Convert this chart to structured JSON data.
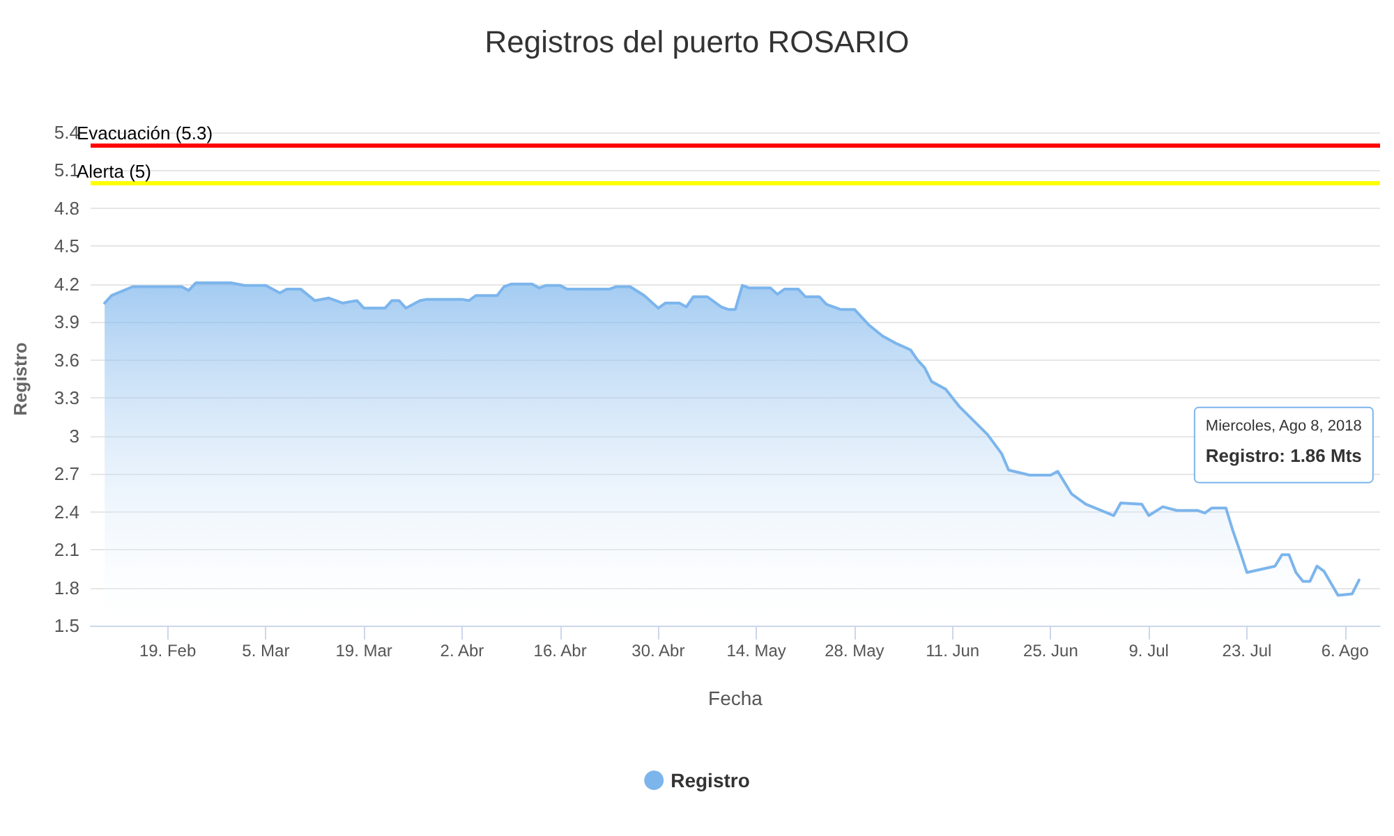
{
  "chart_data": {
    "type": "area",
    "title": "Registros del puerto ROSARIO",
    "xlabel": "Fecha",
    "ylabel": "Registro",
    "x": [
      "2018-02-10",
      "2018-02-11",
      "2018-02-14",
      "2018-02-21",
      "2018-02-22",
      "2018-02-23",
      "2018-02-28",
      "2018-03-02",
      "2018-03-05",
      "2018-03-07",
      "2018-03-08",
      "2018-03-10",
      "2018-03-12",
      "2018-03-14",
      "2018-03-16",
      "2018-03-18",
      "2018-03-19",
      "2018-03-22",
      "2018-03-23",
      "2018-03-24",
      "2018-03-25",
      "2018-03-27",
      "2018-03-28",
      "2018-04-02",
      "2018-04-03",
      "2018-04-04",
      "2018-04-07",
      "2018-04-08",
      "2018-04-09",
      "2018-04-12",
      "2018-04-13",
      "2018-04-14",
      "2018-04-16",
      "2018-04-17",
      "2018-04-23",
      "2018-04-24",
      "2018-04-26",
      "2018-04-28",
      "2018-04-30",
      "2018-05-01",
      "2018-05-03",
      "2018-05-04",
      "2018-05-05",
      "2018-05-07",
      "2018-05-09",
      "2018-05-10",
      "2018-05-11",
      "2018-05-12",
      "2018-05-13",
      "2018-05-16",
      "2018-05-17",
      "2018-05-18",
      "2018-05-20",
      "2018-05-21",
      "2018-05-23",
      "2018-05-24",
      "2018-05-26",
      "2018-05-28",
      "2018-05-30",
      "2018-06-01",
      "2018-06-03",
      "2018-06-05",
      "2018-06-06",
      "2018-06-07",
      "2018-06-08",
      "2018-06-10",
      "2018-06-12",
      "2018-06-16",
      "2018-06-18",
      "2018-06-19",
      "2018-06-22",
      "2018-06-25",
      "2018-06-26",
      "2018-06-28",
      "2018-06-30",
      "2018-07-04",
      "2018-07-05",
      "2018-07-08",
      "2018-07-09",
      "2018-07-11",
      "2018-07-13",
      "2018-07-16",
      "2018-07-17",
      "2018-07-18",
      "2018-07-20",
      "2018-07-21",
      "2018-07-22",
      "2018-07-23",
      "2018-07-27",
      "2018-07-28",
      "2018-07-29",
      "2018-07-30",
      "2018-07-31",
      "2018-08-01",
      "2018-08-02",
      "2018-08-03",
      "2018-08-05",
      "2018-08-07",
      "2018-08-08"
    ],
    "series": [
      {
        "name": "Registro",
        "color": "#7cb5ec",
        "values": [
          4.05,
          4.11,
          4.18,
          4.18,
          4.15,
          4.21,
          4.21,
          4.19,
          4.19,
          4.13,
          4.16,
          4.16,
          4.07,
          4.09,
          4.05,
          4.07,
          4.01,
          4.01,
          4.07,
          4.07,
          4.01,
          4.07,
          4.08,
          4.08,
          4.07,
          4.11,
          4.11,
          4.18,
          4.2,
          4.2,
          4.17,
          4.19,
          4.19,
          4.16,
          4.16,
          4.18,
          4.18,
          4.11,
          4.01,
          4.05,
          4.05,
          4.02,
          4.1,
          4.1,
          4.02,
          4.0,
          4.0,
          4.19,
          4.17,
          4.17,
          4.12,
          4.16,
          4.16,
          4.1,
          4.1,
          4.04,
          4.0,
          4.0,
          3.88,
          3.79,
          3.73,
          3.68,
          3.6,
          3.54,
          3.43,
          3.37,
          3.23,
          3.01,
          2.86,
          2.73,
          2.69,
          2.69,
          2.72,
          2.54,
          2.46,
          2.37,
          2.47,
          2.46,
          2.37,
          2.44,
          2.41,
          2.41,
          2.39,
          2.43,
          2.43,
          2.25,
          2.09,
          1.92,
          1.97,
          2.06,
          2.06,
          1.92,
          1.85,
          1.85,
          1.97,
          1.93,
          1.74,
          1.75,
          1.86
        ]
      }
    ],
    "xlim": [
      "2018-02-08",
      "2018-08-11"
    ],
    "xticks": [
      {
        "value": "2018-02-19",
        "label": "19. Feb"
      },
      {
        "value": "2018-03-05",
        "label": "5. Mar"
      },
      {
        "value": "2018-03-19",
        "label": "19. Mar"
      },
      {
        "value": "2018-04-02",
        "label": "2. Abr"
      },
      {
        "value": "2018-04-16",
        "label": "16. Abr"
      },
      {
        "value": "2018-04-30",
        "label": "30. Abr"
      },
      {
        "value": "2018-05-14",
        "label": "14. May"
      },
      {
        "value": "2018-05-28",
        "label": "28. May"
      },
      {
        "value": "2018-06-11",
        "label": "11. Jun"
      },
      {
        "value": "2018-06-25",
        "label": "25. Jun"
      },
      {
        "value": "2018-07-09",
        "label": "9. Jul"
      },
      {
        "value": "2018-07-23",
        "label": "23. Jul"
      },
      {
        "value": "2018-08-06",
        "label": "6. Ago"
      }
    ],
    "ylim": [
      1.5,
      5.4
    ],
    "yticks": [
      1.5,
      1.8,
      2.1,
      2.4,
      2.7,
      3,
      3.3,
      3.6,
      3.9,
      4.2,
      4.5,
      4.8,
      5.1,
      5.4
    ],
    "ref_lines": [
      {
        "axis": "y",
        "value": 5.3,
        "label": "Evacuación (5.3)",
        "color": "#ff0000"
      },
      {
        "axis": "y",
        "value": 5,
        "label": "Alerta (5)",
        "color": "#ffff00"
      }
    ],
    "annotations": [
      "Miercoles, Ago 8, 2018",
      "Registro: 1.86 Mts"
    ],
    "grid": "y",
    "legend": "bottom",
    "marker": "none"
  }
}
